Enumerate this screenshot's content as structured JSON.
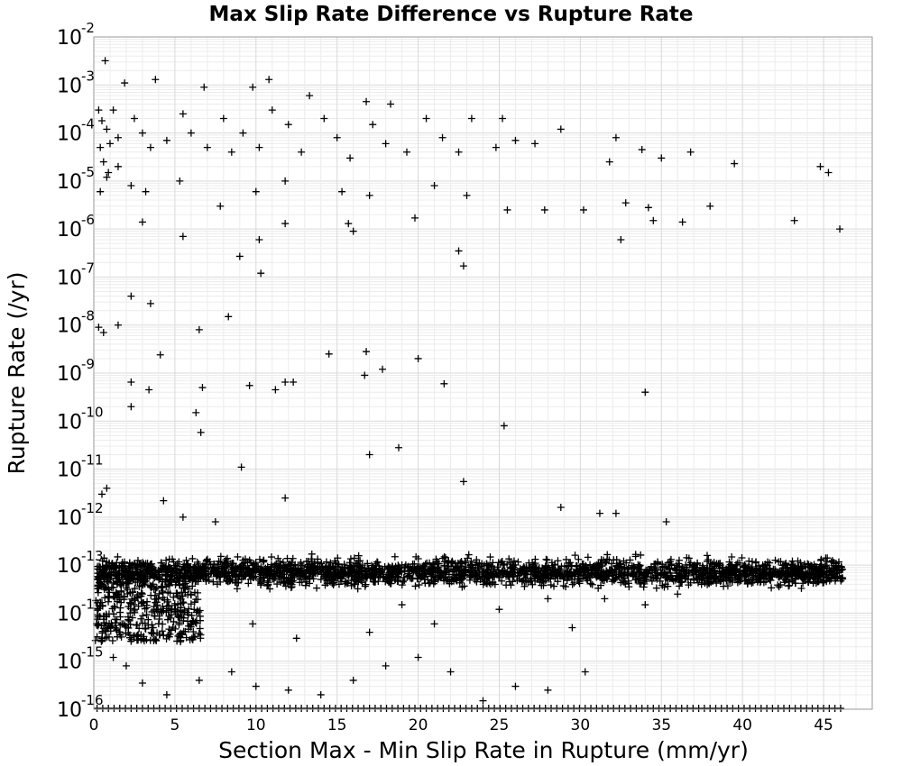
{
  "chart_data": {
    "type": "scatter",
    "title": "Max Slip Rate Difference vs Rupture Rate",
    "xlabel": "Section Max - Min Slip Rate in Rupture (mm/yr)",
    "ylabel": "Rupture Rate (/yr)",
    "xlim": [
      0,
      48
    ],
    "ylim": [
      1e-16,
      0.01
    ],
    "yscale": "log",
    "grid": true,
    "marker": "plus",
    "marker_color": "#000000",
    "x_ticks": [
      0,
      5,
      10,
      15,
      20,
      25,
      30,
      35,
      40,
      45
    ],
    "x_tick_labels": [
      "0",
      "5",
      "10",
      "15",
      "20",
      "25",
      "30",
      "35",
      "40",
      "45"
    ],
    "y_ticks": [
      {
        "base": "10",
        "exp": "-16",
        "value": 1e-16
      },
      {
        "base": "10",
        "exp": "-15",
        "value": 1e-15
      },
      {
        "base": "10",
        "exp": "-14",
        "value": 1e-14
      },
      {
        "base": "10",
        "exp": "-13",
        "value": 1e-13
      },
      {
        "base": "10",
        "exp": "-12",
        "value": 1e-12
      },
      {
        "base": "10",
        "exp": "-11",
        "value": 1e-11
      },
      {
        "base": "10",
        "exp": "-10",
        "value": 1e-10
      },
      {
        "base": "10",
        "exp": "-9",
        "value": 1e-09
      },
      {
        "base": "10",
        "exp": "-8",
        "value": 1e-08
      },
      {
        "base": "10",
        "exp": "-7",
        "value": 1e-07
      },
      {
        "base": "10",
        "exp": "-6",
        "value": 1e-06
      },
      {
        "base": "10",
        "exp": "-5",
        "value": 1e-05
      },
      {
        "base": "10",
        "exp": "-4",
        "value": 0.0001
      },
      {
        "base": "10",
        "exp": "-3",
        "value": 0.001
      },
      {
        "base": "10",
        "exp": "-2",
        "value": 0.01
      }
    ],
    "points": [
      [
        0.7,
        0.0032
      ],
      [
        1.9,
        0.0011
      ],
      [
        3.8,
        0.0013
      ],
      [
        6.8,
        0.0009
      ],
      [
        9.8,
        0.0009
      ],
      [
        10.8,
        0.0013
      ],
      [
        13.3,
        0.0006
      ],
      [
        16.8,
        0.00045
      ],
      [
        18.3,
        0.0004
      ],
      [
        0.3,
        0.0003
      ],
      [
        0.5,
        0.00018
      ],
      [
        0.8,
        0.00012
      ],
      [
        1.0,
        6e-05
      ],
      [
        1.2,
        0.0003
      ],
      [
        0.4,
        5e-05
      ],
      [
        0.6,
        2.5e-05
      ],
      [
        0.9,
        1.5e-05
      ],
      [
        1.5,
        8e-05
      ],
      [
        2.5,
        0.0002
      ],
      [
        3.0,
        0.0001
      ],
      [
        3.5,
        5e-05
      ],
      [
        4.5,
        7e-05
      ],
      [
        5.5,
        0.00025
      ],
      [
        6.0,
        0.0001
      ],
      [
        7.0,
        5e-05
      ],
      [
        8.0,
        0.0002
      ],
      [
        8.5,
        4e-05
      ],
      [
        9.2,
        0.0001
      ],
      [
        10.2,
        5e-05
      ],
      [
        11.0,
        0.0003
      ],
      [
        12.0,
        0.00015
      ],
      [
        12.8,
        4e-05
      ],
      [
        14.2,
        0.0002
      ],
      [
        15.0,
        8e-05
      ],
      [
        15.8,
        3e-05
      ],
      [
        17.2,
        0.00015
      ],
      [
        18.0,
        6e-05
      ],
      [
        19.3,
        4e-05
      ],
      [
        20.5,
        0.0002
      ],
      [
        21.5,
        8e-05
      ],
      [
        22.5,
        4e-05
      ],
      [
        23.3,
        0.0002
      ],
      [
        24.8,
        5e-05
      ],
      [
        25.2,
        0.0002
      ],
      [
        26.0,
        7e-05
      ],
      [
        27.2,
        6e-05
      ],
      [
        28.8,
        0.00012
      ],
      [
        31.8,
        2.5e-05
      ],
      [
        32.2,
        8e-05
      ],
      [
        33.8,
        4.5e-05
      ],
      [
        35.0,
        3e-05
      ],
      [
        36.8,
        4e-05
      ],
      [
        39.5,
        2.3e-05
      ],
      [
        44.8,
        2e-05
      ],
      [
        45.3,
        1.5e-05
      ],
      [
        0.4,
        6e-06
      ],
      [
        0.8,
        1.2e-05
      ],
      [
        1.5,
        2e-05
      ],
      [
        2.3,
        8e-06
      ],
      [
        3.2,
        6e-06
      ],
      [
        5.3,
        1e-05
      ],
      [
        7.8,
        3e-06
      ],
      [
        10.0,
        6e-06
      ],
      [
        11.8,
        1e-05
      ],
      [
        15.3,
        6e-06
      ],
      [
        17.0,
        5e-06
      ],
      [
        21.0,
        8e-06
      ],
      [
        23.0,
        5e-06
      ],
      [
        25.5,
        2.5e-06
      ],
      [
        27.8,
        2.5e-06
      ],
      [
        30.2,
        2.5e-06
      ],
      [
        32.8,
        3.5e-06
      ],
      [
        34.2,
        2.8e-06
      ],
      [
        38.0,
        3e-06
      ],
      [
        43.2,
        1.5e-06
      ],
      [
        46.0,
        1e-06
      ],
      [
        3.0,
        1.4e-06
      ],
      [
        5.5,
        7e-07
      ],
      [
        10.2,
        6e-07
      ],
      [
        11.8,
        1.3e-06
      ],
      [
        15.7,
        1.3e-06
      ],
      [
        16.0,
        9e-07
      ],
      [
        19.8,
        1.7e-06
      ],
      [
        22.5,
        3.5e-07
      ],
      [
        22.8,
        1.7e-07
      ],
      [
        32.5,
        6e-07
      ],
      [
        34.5,
        1.5e-06
      ],
      [
        36.3,
        1.4e-06
      ],
      [
        9.0,
        2.7e-07
      ],
      [
        10.3,
        1.2e-07
      ],
      [
        2.3,
        4e-08
      ],
      [
        3.5,
        2.8e-08
      ],
      [
        0.3,
        9e-09
      ],
      [
        0.6,
        7e-09
      ],
      [
        1.5,
        1e-08
      ],
      [
        6.5,
        8e-09
      ],
      [
        8.3,
        1.5e-08
      ],
      [
        4.1,
        2.4e-09
      ],
      [
        14.5,
        2.5e-09
      ],
      [
        16.8,
        2.8e-09
      ],
      [
        20.0,
        2e-09
      ],
      [
        17.8,
        1.2e-09
      ],
      [
        16.7,
        9e-10
      ],
      [
        2.3,
        6.5e-10
      ],
      [
        3.4,
        4.5e-10
      ],
      [
        6.7,
        5e-10
      ],
      [
        9.6,
        5.5e-10
      ],
      [
        11.2,
        4.5e-10
      ],
      [
        11.8,
        6.5e-10
      ],
      [
        12.3,
        6.5e-10
      ],
      [
        21.6,
        6e-10
      ],
      [
        34.0,
        4e-10
      ],
      [
        2.3,
        2e-10
      ],
      [
        6.3,
        1.5e-10
      ],
      [
        6.6,
        5.8e-11
      ],
      [
        25.3,
        8e-11
      ],
      [
        18.8,
        2.8e-11
      ],
      [
        17.0,
        2e-11
      ],
      [
        9.1,
        1.1e-11
      ],
      [
        22.8,
        5.5e-12
      ],
      [
        4.3,
        2.2e-12
      ],
      [
        0.5,
        3e-12
      ],
      [
        0.8,
        4e-12
      ],
      [
        11.8,
        2.5e-12
      ],
      [
        5.5,
        1e-12
      ],
      [
        7.5,
        8e-13
      ],
      [
        28.8,
        1.6e-12
      ],
      [
        31.2,
        1.2e-12
      ],
      [
        32.2,
        1.2e-12
      ],
      [
        35.3,
        8e-13
      ],
      [
        9.8,
        6e-15
      ],
      [
        0.5,
        3e-15
      ],
      [
        1.2,
        1.2e-15
      ],
      [
        2.0,
        8e-16
      ],
      [
        3.0,
        3.5e-16
      ],
      [
        4.5,
        2e-16
      ],
      [
        6.5,
        4e-16
      ],
      [
        8.5,
        6e-16
      ],
      [
        10.0,
        3e-16
      ],
      [
        12.0,
        2.5e-16
      ],
      [
        14.0,
        2e-16
      ],
      [
        16.0,
        4e-16
      ],
      [
        18.0,
        8e-16
      ],
      [
        20.0,
        1.2e-15
      ],
      [
        22.0,
        6e-16
      ],
      [
        24.0,
        1.5e-16
      ],
      [
        26.0,
        3e-16
      ],
      [
        28.0,
        2.5e-16
      ],
      [
        30.3,
        6e-16
      ],
      [
        12.5,
        3e-15
      ],
      [
        17.0,
        4e-15
      ],
      [
        19.0,
        1.5e-14
      ],
      [
        21.0,
        6e-15
      ],
      [
        25.0,
        1.2e-14
      ],
      [
        28.0,
        2e-14
      ],
      [
        29.5,
        5e-15
      ],
      [
        31.5,
        2e-14
      ],
      [
        34.0,
        1.5e-14
      ],
      [
        36.0,
        2.5e-14
      ]
    ]
  }
}
